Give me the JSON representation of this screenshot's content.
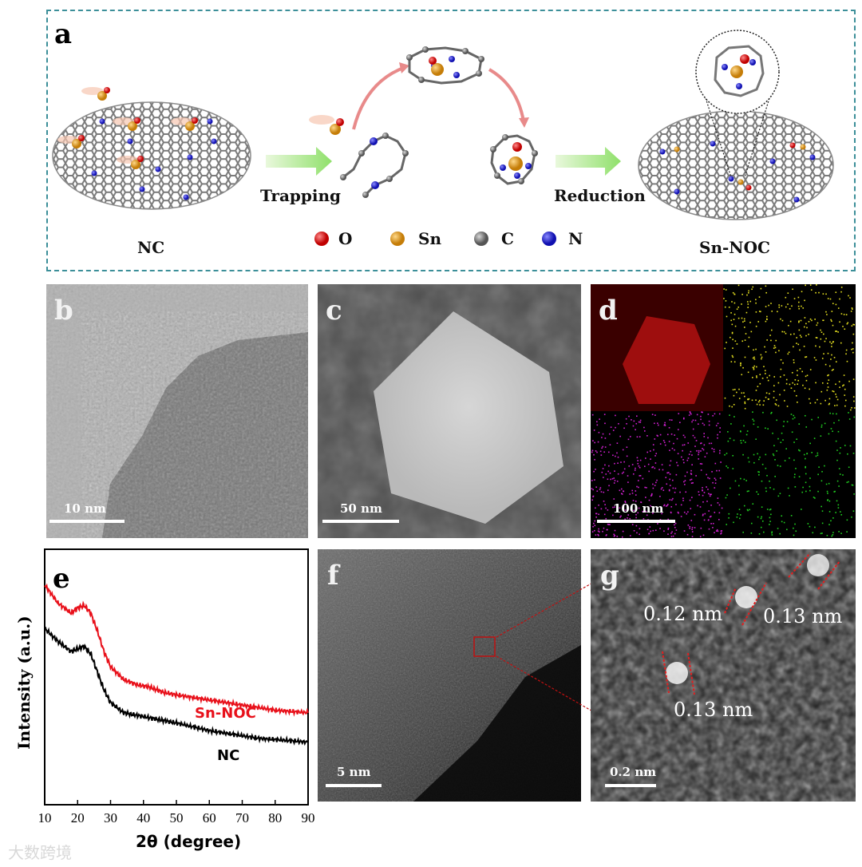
{
  "panel_a": {
    "label": "a",
    "nc_label": "NC",
    "trapping_label": "Trapping",
    "reduction_label": "Reduction",
    "product_label": "Sn-NOC",
    "legend": [
      {
        "symbol": "O",
        "color": "#e01c1c"
      },
      {
        "symbol": "Sn",
        "color": "#e8a32a"
      },
      {
        "symbol": "C",
        "color": "#8c8c8c"
      },
      {
        "symbol": "N",
        "color": "#2a2ae0"
      }
    ]
  },
  "panel_b": {
    "label": "b",
    "scale": "10 nm"
  },
  "panel_c": {
    "label": "c",
    "scale": "50 nm"
  },
  "panel_d": {
    "label": "d",
    "scale": "100 nm",
    "map_colors": [
      "#e01010",
      "#e6e020",
      "#d020d0",
      "#20d020"
    ]
  },
  "panel_f": {
    "label": "f",
    "scale": "5 nm"
  },
  "panel_g": {
    "label": "g",
    "scale": "0.2 nm",
    "measurements": [
      "0.12 nm",
      "0.13 nm",
      "0.13 nm"
    ]
  },
  "chart_data": {
    "type": "line",
    "panel_label": "e",
    "xlabel": "2θ (degree)",
    "ylabel": "Intensity (a.u.)",
    "xlim": [
      10,
      90
    ],
    "x_ticks": [
      "10",
      "20",
      "30",
      "40",
      "50",
      "60",
      "70",
      "80",
      "90"
    ],
    "y_ticks_shown": false,
    "series": [
      {
        "name": "Sn-NOC",
        "color": "#e8101a",
        "x": [
          10,
          14,
          18,
          20,
          22,
          24,
          26,
          28,
          30,
          34,
          38,
          42,
          46,
          50,
          55,
          60,
          65,
          70,
          75,
          80,
          85,
          90
        ],
        "y": [
          0.86,
          0.79,
          0.75,
          0.77,
          0.78,
          0.75,
          0.68,
          0.6,
          0.54,
          0.49,
          0.47,
          0.46,
          0.44,
          0.43,
          0.42,
          0.41,
          0.4,
          0.39,
          0.38,
          0.37,
          0.365,
          0.36
        ]
      },
      {
        "name": "NC",
        "color": "#000000",
        "x": [
          10,
          14,
          18,
          20,
          22,
          24,
          26,
          28,
          30,
          34,
          38,
          42,
          46,
          50,
          55,
          60,
          65,
          70,
          75,
          80,
          85,
          90
        ],
        "y": [
          0.69,
          0.64,
          0.6,
          0.61,
          0.62,
          0.59,
          0.52,
          0.45,
          0.4,
          0.36,
          0.35,
          0.34,
          0.33,
          0.32,
          0.305,
          0.29,
          0.28,
          0.27,
          0.26,
          0.255,
          0.25,
          0.245
        ]
      }
    ]
  },
  "watermark": "大数跨境"
}
